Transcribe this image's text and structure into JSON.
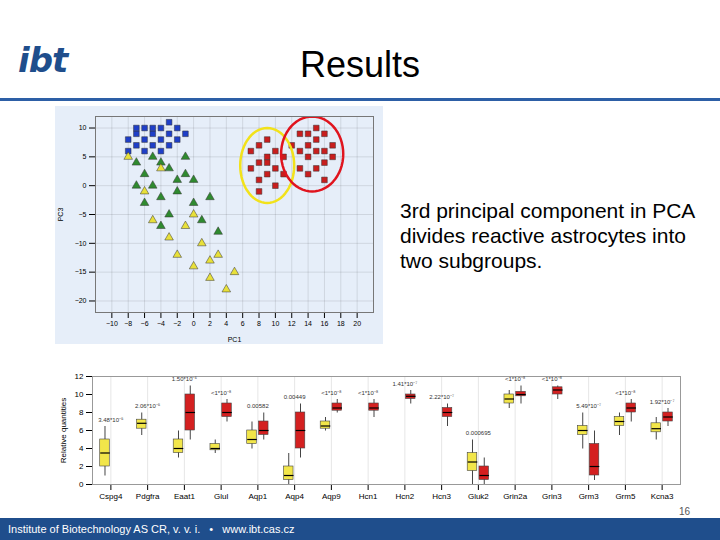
{
  "slide": {
    "logo": "ibt",
    "title": "Results",
    "body": "3rd principal component in PCA divides reactive astrocytes into two subgroups.",
    "footer": [
      "Institute of Biotechnology AS CR, v. v. i.",
      "•",
      "www.ibt.cas.cz"
    ],
    "page": "16"
  },
  "chart_data": [
    {
      "type": "scatter",
      "x_label": "PC1",
      "y_label": "PC3",
      "xlim": [
        -12,
        22
      ],
      "xticks": [
        -10,
        -8,
        -6,
        -4,
        -2,
        0,
        2,
        4,
        6,
        8,
        10,
        12,
        14,
        16,
        18,
        20
      ],
      "ylim": [
        -22,
        12
      ],
      "yticks": [
        -20,
        -15,
        -10,
        -5,
        0,
        5,
        10
      ],
      "series": [
        {
          "color": "#1f3fc8",
          "marker": "square",
          "values": [
            [
              -8,
              8
            ],
            [
              -7,
              9
            ],
            [
              -6,
              10
            ],
            [
              -5,
              9
            ],
            [
              -4,
              8
            ],
            [
              -7,
              7
            ],
            [
              -6,
              8
            ],
            [
              -5,
              10
            ],
            [
              -3,
              9
            ],
            [
              -2,
              8
            ],
            [
              -4,
              10
            ],
            [
              -8,
              6
            ],
            [
              -6,
              6
            ],
            [
              -3,
              7
            ],
            [
              -5,
              7
            ],
            [
              -2,
              10
            ],
            [
              -7,
              10
            ],
            [
              -4,
              6
            ],
            [
              -1,
              9
            ],
            [
              -3,
              11
            ]
          ]
        },
        {
          "color": "#2f8a2f",
          "marker": "triangle",
          "values": [
            [
              -7,
              4
            ],
            [
              -6,
              2
            ],
            [
              -5,
              0
            ],
            [
              -4,
              -2
            ],
            [
              -3,
              3
            ],
            [
              -2,
              1
            ],
            [
              -6,
              -3
            ],
            [
              -5,
              5
            ],
            [
              -4,
              4
            ],
            [
              -3,
              -5
            ],
            [
              -2,
              -1
            ],
            [
              -1,
              2
            ],
            [
              0,
              -3
            ],
            [
              1,
              -6
            ],
            [
              -7,
              0
            ],
            [
              -4,
              -7
            ],
            [
              2,
              -2
            ],
            [
              3,
              -8
            ],
            [
              -1,
              5
            ],
            [
              0,
              1
            ]
          ]
        },
        {
          "color": "#e8e03a",
          "marker": "triangle",
          "values": [
            [
              -8,
              5
            ],
            [
              -6,
              -1
            ],
            [
              -5,
              -6
            ],
            [
              -3,
              -9
            ],
            [
              -2,
              -12
            ],
            [
              0,
              -14
            ],
            [
              1,
              -10
            ],
            [
              2,
              -16
            ],
            [
              3,
              -12
            ],
            [
              4,
              -18
            ],
            [
              -1,
              -7
            ],
            [
              5,
              -15
            ],
            [
              -4,
              3
            ],
            [
              0,
              -5
            ],
            [
              2,
              -13
            ]
          ]
        },
        {
          "color": "#c81e1e",
          "marker": "square",
          "values": [
            [
              7,
              6
            ],
            [
              8,
              4
            ],
            [
              8,
              7
            ],
            [
              9,
              5
            ],
            [
              9,
              2
            ],
            [
              10,
              6
            ],
            [
              10,
              3
            ],
            [
              8,
              1
            ],
            [
              7,
              3
            ],
            [
              11,
              5
            ],
            [
              9,
              8
            ],
            [
              10,
              0
            ],
            [
              11,
              2
            ],
            [
              8,
              -1
            ],
            [
              9,
              4
            ]
          ]
        },
        {
          "color": "#c81e1e",
          "marker": "square",
          "values": [
            [
              13,
              9
            ],
            [
              14,
              7
            ],
            [
              15,
              8
            ],
            [
              16,
              6
            ],
            [
              14,
              5
            ],
            [
              15,
              3
            ],
            [
              16,
              9
            ],
            [
              17,
              7
            ],
            [
              13,
              6
            ],
            [
              14,
              2
            ],
            [
              15,
              10
            ],
            [
              16,
              4
            ],
            [
              17,
              5
            ],
            [
              13,
              3
            ],
            [
              15,
              6
            ],
            [
              14,
              9
            ],
            [
              16,
              1
            ],
            [
              12,
              7
            ]
          ]
        }
      ]
    },
    {
      "type": "box",
      "y_label": "Relative quantities",
      "grid": true,
      "categories": [
        "Cspg4",
        "Pdgfra",
        "Eaat1",
        "Glul",
        "Aqp1",
        "Aqp4",
        "Aqp9",
        "Hcn1",
        "Hcn2",
        "Hcn3",
        "Gluk2",
        "Grin2a",
        "Grin3",
        "Grm3",
        "Grm5",
        "Kcna3"
      ],
      "annotations": [
        "3.48*10⁻⁵",
        "2.06*10⁻⁵",
        "1.50*10⁻⁶",
        "<1*10⁻⁸",
        "0.00582",
        "0.00449",
        "<1*10⁻⁸",
        "<1*10⁻⁸",
        "1.41*10⁻⁷",
        "2.22*10⁻⁷",
        "0.000695",
        "<1*10⁻⁸",
        "<1*10⁻⁸",
        "5.49*10⁻⁷",
        "<1*10⁻⁸",
        "1.92*10⁻⁷"
      ],
      "ylim": [
        0,
        12
      ],
      "yticks": [
        0,
        2,
        4,
        6,
        8,
        10,
        12
      ],
      "series": [
        {
          "color": "#f2e64a",
          "values": [
            [
              1,
              2,
              3.5,
              5,
              6.5
            ],
            [
              5.5,
              6.2,
              6.8,
              7.2,
              8
            ],
            [
              3,
              3.5,
              4,
              5,
              6
            ],
            [
              3.5,
              3.8,
              4,
              4.5,
              5
            ],
            [
              4,
              4.5,
              5,
              6,
              7
            ],
            [
              0,
              0.5,
              1,
              2,
              3.5
            ],
            [
              6,
              6.2,
              6.5,
              7,
              7.5
            ],
            null,
            null,
            null,
            [
              0,
              1.5,
              2.5,
              3.5,
              5
            ],
            [
              8.5,
              9,
              9.5,
              10,
              10.5
            ],
            null,
            [
              4,
              5.5,
              6,
              6.5,
              8
            ],
            [
              5.5,
              6.5,
              7,
              7.5,
              8
            ],
            [
              5,
              5.8,
              6.2,
              6.8,
              7.5
            ]
          ]
        },
        {
          "color": "#d42020",
          "values": [
            null,
            null,
            [
              5,
              6,
              8,
              10,
              11
            ],
            [
              7,
              7.5,
              8,
              9,
              9.5
            ],
            [
              5,
              5.5,
              6,
              7,
              8
            ],
            [
              3,
              4,
              6,
              8,
              9
            ],
            [
              8,
              8.2,
              8.5,
              9,
              9.5
            ],
            [
              7.5,
              8.2,
              8.5,
              9,
              9.5
            ],
            [
              9,
              9.5,
              9.8,
              10,
              10.5
            ],
            [
              6.5,
              7.5,
              8,
              8.5,
              9
            ],
            [
              0,
              0.5,
              1,
              2,
              3
            ],
            [
              9,
              9.8,
              10,
              10.3,
              11
            ],
            [
              9.5,
              10,
              10.5,
              10.8,
              11
            ],
            [
              0.5,
              1,
              2,
              4.5,
              6
            ],
            [
              7,
              8,
              8.5,
              9,
              9.5
            ],
            [
              6.5,
              7,
              7.5,
              8,
              8.5
            ]
          ]
        }
      ]
    }
  ]
}
